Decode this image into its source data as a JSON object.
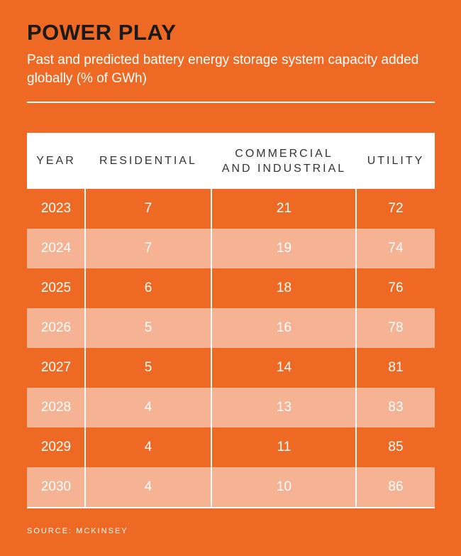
{
  "title": "POWER PLAY",
  "subtitle": "Past and predicted battery energy storage system capacity added globally (% of GWh)",
  "source": "SOURCE: MCKINSEY",
  "colors": {
    "background": "#EE6A24",
    "stripe": "#F5B393",
    "header": "#FFFFFF",
    "title": "#1A1A1A"
  },
  "chart_data": {
    "type": "table",
    "columns": [
      "YEAR",
      "RESIDENTIAL",
      "COMMERCIAL\nAND INDUSTRIAL",
      "UTILITY"
    ],
    "rows": [
      [
        "2023",
        "7",
        "21",
        "72"
      ],
      [
        "2024",
        "7",
        "19",
        "74"
      ],
      [
        "2025",
        "6",
        "18",
        "76"
      ],
      [
        "2026",
        "5",
        "16",
        "78"
      ],
      [
        "2027",
        "5",
        "14",
        "81"
      ],
      [
        "2028",
        "4",
        "13",
        "83"
      ],
      [
        "2029",
        "4",
        "11",
        "85"
      ],
      [
        "2030",
        "4",
        "10",
        "86"
      ]
    ]
  }
}
